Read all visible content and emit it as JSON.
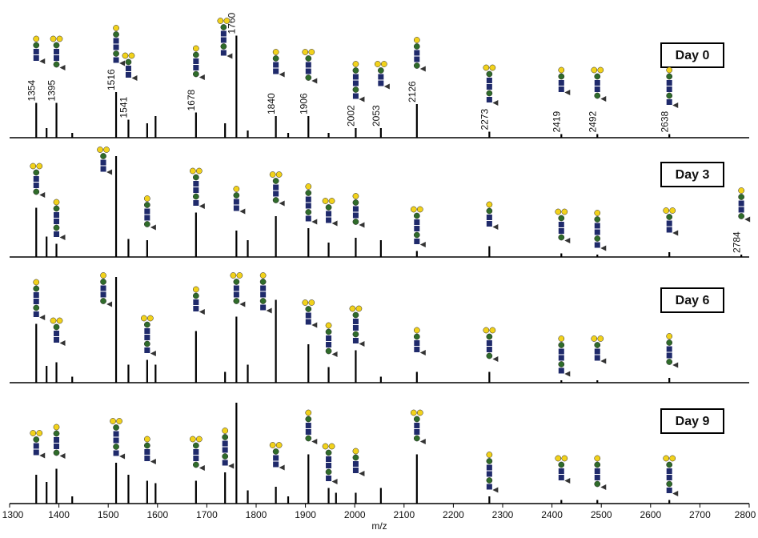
{
  "chart_data": [
    {
      "type": "bar",
      "label": "Day 0",
      "color": "#000000",
      "xlim": [
        1300,
        2800
      ],
      "ylim": [
        0,
        100
      ],
      "x": [
        1354,
        1375,
        1395,
        1427,
        1516,
        1541,
        1579,
        1596,
        1678,
        1737,
        1760,
        1783,
        1840,
        1865,
        1906,
        1947,
        2002,
        2053,
        2126,
        2273,
        2419,
        2492,
        2638
      ],
      "values": [
        29,
        8,
        29,
        4,
        38,
        15,
        12,
        18,
        21,
        12,
        85,
        6,
        18,
        4,
        18,
        4,
        8,
        8,
        28,
        5,
        3,
        3,
        3
      ],
      "peak_labels": [
        1354,
        1395,
        1516,
        1541,
        1678,
        1760,
        1840,
        1906,
        2053,
        2002,
        2126,
        2273,
        2419,
        2492,
        2638
      ]
    },
    {
      "type": "bar",
      "label": "Day 3",
      "color": "#000000",
      "xlim": [
        1300,
        2800
      ],
      "ylim": [
        0,
        100
      ],
      "x": [
        1354,
        1375,
        1395,
        1516,
        1541,
        1579,
        1678,
        1760,
        1783,
        1840,
        1906,
        1947,
        2002,
        2053,
        2126,
        2273,
        2419,
        2492,
        2638,
        2784
      ],
      "values": [
        41,
        17,
        11,
        84,
        15,
        14,
        37,
        22,
        14,
        34,
        24,
        12,
        16,
        14,
        5,
        9,
        3,
        2,
        4,
        2
      ],
      "peak_labels": [
        2784
      ]
    },
    {
      "type": "bar",
      "label": "Day 6",
      "color": "#000000",
      "xlim": [
        1300,
        2800
      ],
      "ylim": [
        0,
        100
      ],
      "x": [
        1354,
        1375,
        1395,
        1427,
        1516,
        1541,
        1579,
        1596,
        1678,
        1737,
        1760,
        1783,
        1840,
        1906,
        1947,
        2002,
        2053,
        2126,
        2273,
        2419,
        2492,
        2638
      ],
      "values": [
        49,
        14,
        17,
        5,
        88,
        15,
        19,
        15,
        43,
        9,
        55,
        15,
        69,
        32,
        13,
        27,
        5,
        9,
        9,
        2,
        2,
        4
      ]
    },
    {
      "type": "bar",
      "label": "Day 9",
      "color": "#000000",
      "xlim": [
        1300,
        2800
      ],
      "ylim": [
        0,
        100
      ],
      "x": [
        1354,
        1375,
        1395,
        1427,
        1516,
        1541,
        1579,
        1596,
        1678,
        1737,
        1760,
        1783,
        1840,
        1865,
        1906,
        1947,
        1962,
        2002,
        2053,
        2126,
        2273,
        2419,
        2492,
        2638
      ],
      "values": [
        24,
        18,
        29,
        6,
        34,
        24,
        19,
        17,
        19,
        26,
        84,
        11,
        14,
        6,
        41,
        13,
        9,
        9,
        13,
        41,
        6,
        3,
        3,
        3
      ],
      "xticks": [
        1300,
        1400,
        1500,
        1600,
        1700,
        1800,
        1900,
        2000,
        2100,
        2200,
        2300,
        2400,
        2500,
        2600,
        2700,
        2800
      ],
      "x_label": "m/z"
    }
  ]
}
